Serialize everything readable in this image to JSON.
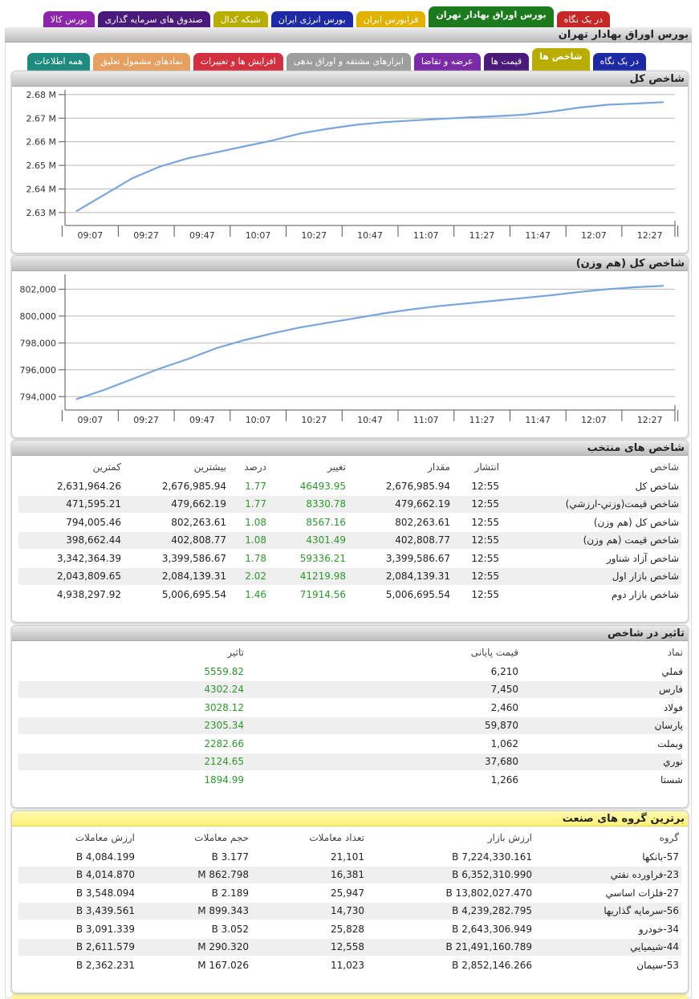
{
  "top_tabs": [
    "در یک نگاه",
    "بورس اوراق بهادار تهران",
    "فرابورس ایران",
    "بورس انرژی ایران",
    "شبکه کدال",
    "صندوق های سرمایه گذاری",
    "بورس کالا"
  ],
  "page_title": "بورس اوراق بهادار تهران",
  "sub_tabs": [
    "در یک نگاه",
    "شاخص ها",
    "قیمت ها",
    "عرضه و تقاضا",
    "ابزارهای مشتقه و اوراق بدهی",
    "افزایش ها و تغییرات",
    "نمادهای مشمول تعلیق",
    "همه اطلاعات"
  ],
  "chart_data": [
    {
      "type": "line",
      "title": "شاخص کل",
      "color": "#78a6dc",
      "grid": true,
      "x": [
        "09:02",
        "09:12",
        "09:22",
        "09:32",
        "09:42",
        "09:52",
        "10:02",
        "10:12",
        "10:22",
        "10:32",
        "10:42",
        "10:52",
        "11:02",
        "11:12",
        "11:22",
        "11:32",
        "11:42",
        "11:52",
        "12:02",
        "12:12",
        "12:22",
        "12:32"
      ],
      "values": [
        2630500,
        2637500,
        2644500,
        2649500,
        2653000,
        2655500,
        2658000,
        2660500,
        2663500,
        2665500,
        2667200,
        2668300,
        2669000,
        2669700,
        2670300,
        2670800,
        2671500,
        2672800,
        2674500,
        2675700,
        2676200,
        2676800
      ],
      "xlim": [
        "08:58",
        "12:36"
      ],
      "xticks": [
        "09:07",
        "09:27",
        "09:47",
        "10:07",
        "10:27",
        "10:47",
        "11:07",
        "11:27",
        "11:47",
        "12:07",
        "12:27"
      ],
      "ylim": [
        2624500,
        2682000
      ],
      "yticks": [
        {
          "value": 2630000,
          "label": "2.63 M"
        },
        {
          "value": 2640000,
          "label": "2.64 M"
        },
        {
          "value": 2650000,
          "label": "2.65 M"
        },
        {
          "value": 2660000,
          "label": "2.66 M"
        },
        {
          "value": 2670000,
          "label": "2.67 M"
        },
        {
          "value": 2680000,
          "label": "2.68 M"
        }
      ]
    },
    {
      "type": "line",
      "title": "شاخص کل (هم وزن)",
      "color": "#78a6dc",
      "grid": true,
      "x": [
        "09:02",
        "09:12",
        "09:22",
        "09:32",
        "09:42",
        "09:52",
        "10:02",
        "10:12",
        "10:22",
        "10:32",
        "10:42",
        "10:52",
        "11:02",
        "11:12",
        "11:22",
        "11:32",
        "11:42",
        "11:52",
        "12:02",
        "12:12",
        "12:22",
        "12:32"
      ],
      "values": [
        793800,
        794500,
        795300,
        796100,
        796800,
        797600,
        798200,
        798700,
        799150,
        799500,
        799850,
        800200,
        800500,
        800750,
        800950,
        801150,
        801350,
        801550,
        801800,
        802000,
        802150,
        802250
      ],
      "xlim": [
        "08:58",
        "12:36"
      ],
      "xticks": [
        "09:07",
        "09:27",
        "09:47",
        "10:07",
        "10:27",
        "10:47",
        "11:07",
        "11:27",
        "11:47",
        "12:07",
        "12:27"
      ],
      "ylim": [
        793000,
        803100
      ],
      "yticks": [
        {
          "value": 794000,
          "label": "794,000"
        },
        {
          "value": 796000,
          "label": "796,000"
        },
        {
          "value": 798000,
          "label": "798,000"
        },
        {
          "value": 800000,
          "label": "800,000"
        },
        {
          "value": 802000,
          "label": "802,000"
        }
      ]
    }
  ],
  "selected_indices": {
    "title": "شاخص های منتخب",
    "columns": [
      "شاخص",
      "انتشار",
      "مقدار",
      "تغییر",
      "درصد",
      "بیشترین",
      "کمترین"
    ],
    "rows": [
      [
        "شاخص کل",
        "12:55",
        "2,676,985.94",
        "46493.95",
        "1.77",
        "2,676,985.94",
        "2,631,964.26"
      ],
      [
        "شاخص قیمت(وزني-ارزشي)",
        "12:55",
        "479,662.19",
        "8330.78",
        "1.77",
        "479,662.19",
        "471,595.21"
      ],
      [
        "شاخص کل (هم وزن)",
        "12:55",
        "802,263.61",
        "8567.16",
        "1.08",
        "802,263.61",
        "794,005.46"
      ],
      [
        "شاخص قیمت (هم وزن)",
        "12:55",
        "402,808.77",
        "4301.49",
        "1.08",
        "402,808.77",
        "398,662.44"
      ],
      [
        "شاخص آزاد شناور",
        "12:55",
        "3,399,586.67",
        "59336.21",
        "1.78",
        "3,399,586.67",
        "3,342,364.39"
      ],
      [
        "شاخص بازار اول",
        "12:55",
        "2,084,139.31",
        "41219.98",
        "2.02",
        "2,084,139.31",
        "2,043,809.65"
      ],
      [
        "شاخص بازار دوم",
        "12:55",
        "5,006,695.54",
        "71914.56",
        "1.46",
        "5,006,695.54",
        "4,938,297.92"
      ]
    ]
  },
  "index_impact": {
    "title": "تاثیر در شاخص",
    "columns": [
      "نماد",
      "قیمت پایانی",
      "تاثیر"
    ],
    "rows": [
      [
        "فملي",
        "6,210",
        "5559.82"
      ],
      [
        "فارس",
        "7,450",
        "4302.24"
      ],
      [
        "فولاد",
        "2,460",
        "3028.12"
      ],
      [
        "پارسان",
        "59,870",
        "2305.34"
      ],
      [
        "وبملت",
        "1,062",
        "2282.66"
      ],
      [
        "نوري",
        "37,680",
        "2124.65"
      ],
      [
        "شستا",
        "1,266",
        "1894.99"
      ]
    ]
  },
  "top_groups": {
    "title": "برترین گروه های صنعت",
    "columns": [
      "گروه",
      "ارزش بازار",
      "تعداد معاملات",
      "حجم معاملات",
      "ارزش معاملات"
    ],
    "rows": [
      [
        "57-بانکها",
        "7,224,330.161 B",
        "21,101",
        "3.177 B",
        "4,084.199 B"
      ],
      [
        "23-فراورده نفتي",
        "6,352,310.990 B",
        "16,381",
        "862.798 M",
        "4,014.870 B"
      ],
      [
        "27-فلزات اساسي",
        "13,802,027.470 B",
        "25,947",
        "2.189 B",
        "3,548.094 B"
      ],
      [
        "56-سرمایه گذاریها",
        "4,239,282.795 B",
        "14,730",
        "899.343 M",
        "3,439.561 B"
      ],
      [
        "34-خودرو",
        "2,643,306.949 B",
        "25,828",
        "3.052 B",
        "3,091.339 B"
      ],
      [
        "44-شیمیایي",
        "21,491,160.789 B",
        "12,558",
        "290.320 M",
        "2,611.579 B"
      ],
      [
        "53-سیمان",
        "2,852,146.266 B",
        "11,023",
        "167.026 M",
        "2,362.231 B"
      ]
    ]
  }
}
